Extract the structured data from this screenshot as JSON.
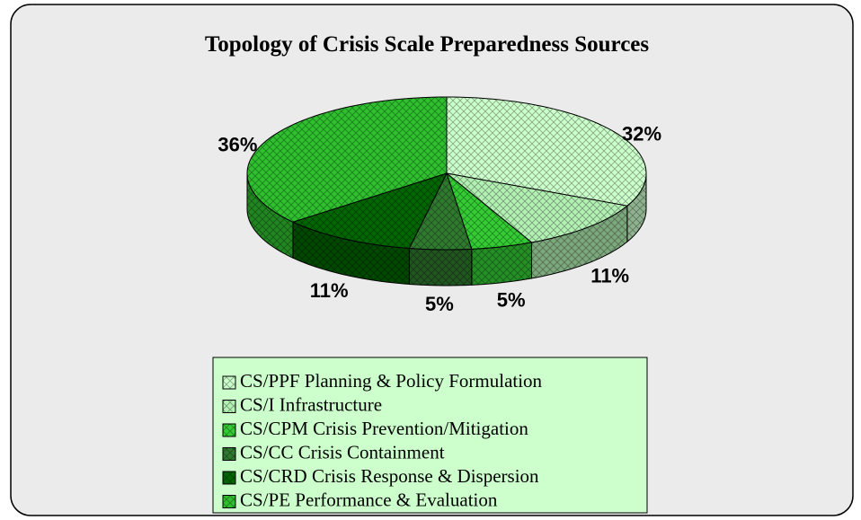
{
  "chart_data": {
    "type": "pie",
    "title": "Topology of Crisis Scale Preparedness Sources",
    "categories": [
      "CS/PPF Planning & Policy Formulation",
      "CS/I Infrastructure",
      "CS/CPM Crisis Prevention/Mitigation",
      "CS/CC Crisis Containment",
      "CS/CRD Crisis Response & Dispersion",
      "CS/PE Performance & Evaluation"
    ],
    "values": [
      32,
      11,
      5,
      5,
      11,
      36
    ],
    "value_labels": [
      "32%",
      "11%",
      "5%",
      "5%",
      "11%",
      "36%"
    ],
    "colors": [
      "#ccffcc",
      "#b3f0b3",
      "#33cc33",
      "#2f7a2f",
      "#006600",
      "#2fbf2f"
    ],
    "legend": "bottom"
  }
}
